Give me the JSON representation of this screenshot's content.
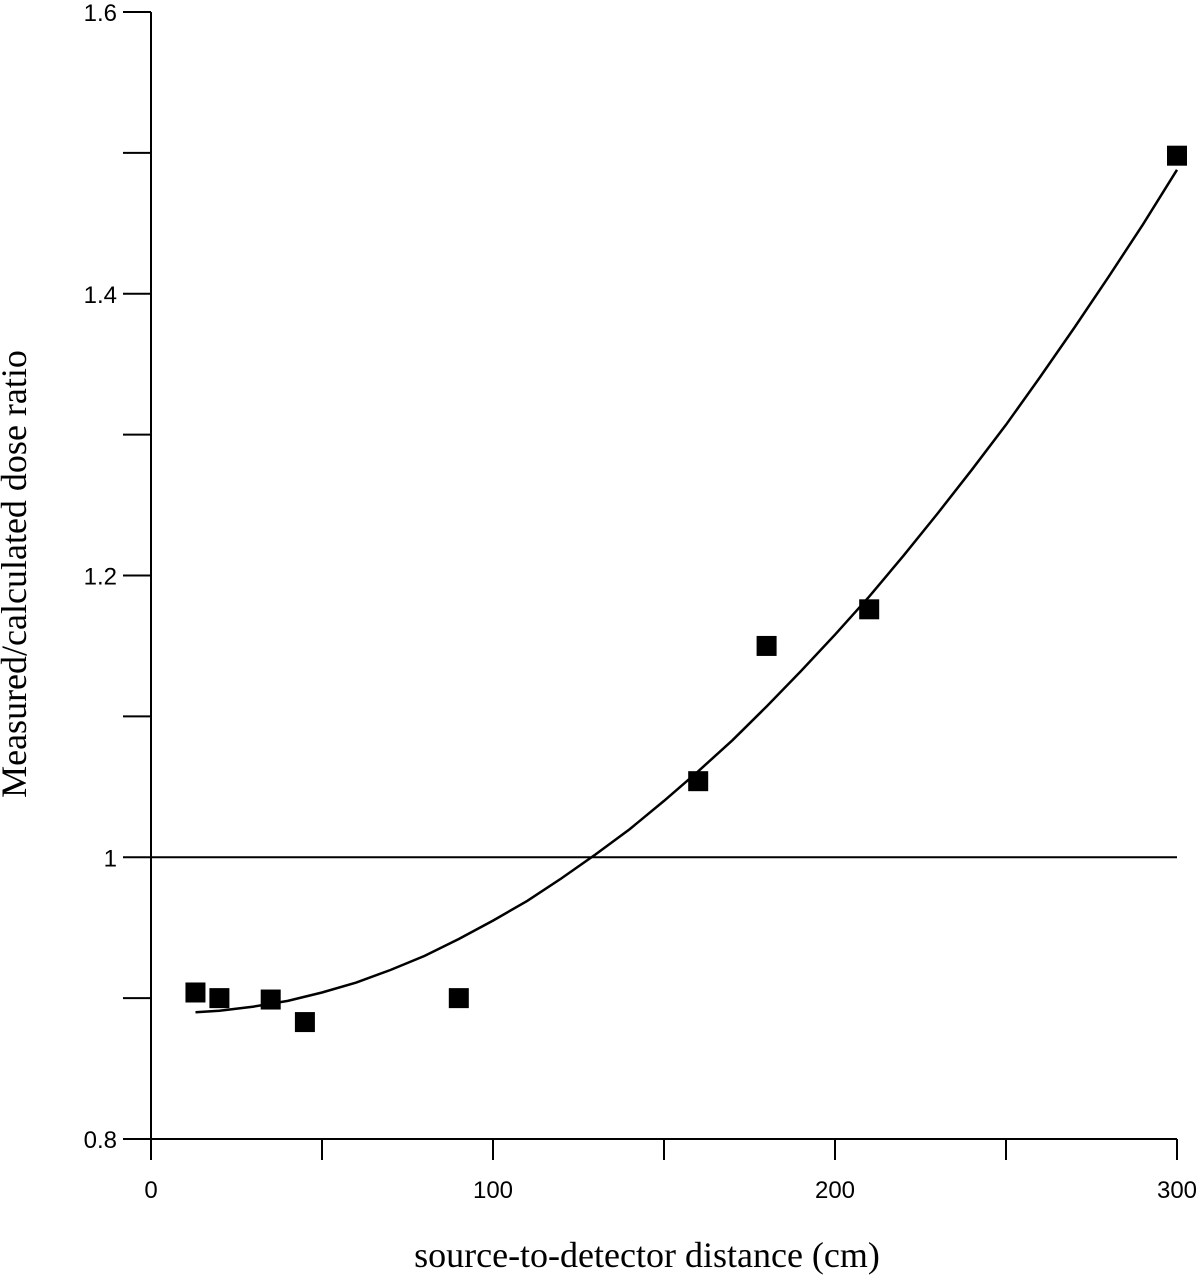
{
  "chart_data": {
    "type": "scatter",
    "title": "",
    "xlabel": "source-to-detector distance (cm)",
    "ylabel": "Measured/calculated dose  ratio",
    "xlim": [
      0,
      300
    ],
    "ylim": [
      0.8,
      1.6
    ],
    "x_ticks": [
      0,
      50,
      100,
      150,
      200,
      250,
      300
    ],
    "x_tick_labels": [
      "0",
      "",
      "100",
      "",
      "200",
      "",
      "300"
    ],
    "y_ticks": [
      0.8,
      0.9,
      1.0,
      1.1,
      1.2,
      1.3,
      1.4,
      1.5,
      1.6
    ],
    "y_tick_labels": [
      "0.8",
      "",
      "1",
      "",
      "1.2",
      "",
      "1.4",
      "",
      "1.6"
    ],
    "grid": false,
    "legend": "none",
    "reference_line": {
      "y": 1.0
    },
    "series": [
      {
        "kind": "points",
        "marker": "square",
        "color": "#000000",
        "x": [
          13,
          20,
          35,
          45,
          90,
          160,
          180,
          210,
          300
        ],
        "y": [
          0.904,
          0.9,
          0.899,
          0.883,
          0.9,
          1.054,
          1.15,
          1.176,
          1.498
        ]
      },
      {
        "kind": "fit-curve",
        "color": "#000000",
        "x": [
          13,
          20,
          30,
          40,
          50,
          60,
          70,
          80,
          90,
          100,
          110,
          120,
          130,
          140,
          150,
          160,
          170,
          180,
          190,
          200,
          210,
          220,
          230,
          240,
          250,
          260,
          270,
          280,
          290,
          300
        ],
        "y": [
          0.89,
          0.891,
          0.894,
          0.898,
          0.904,
          0.911,
          0.92,
          0.93,
          0.942,
          0.955,
          0.969,
          0.985,
          1.002,
          1.02,
          1.04,
          1.061,
          1.083,
          1.107,
          1.132,
          1.158,
          1.185,
          1.214,
          1.244,
          1.275,
          1.307,
          1.341,
          1.376,
          1.412,
          1.449,
          1.488
        ]
      }
    ]
  }
}
